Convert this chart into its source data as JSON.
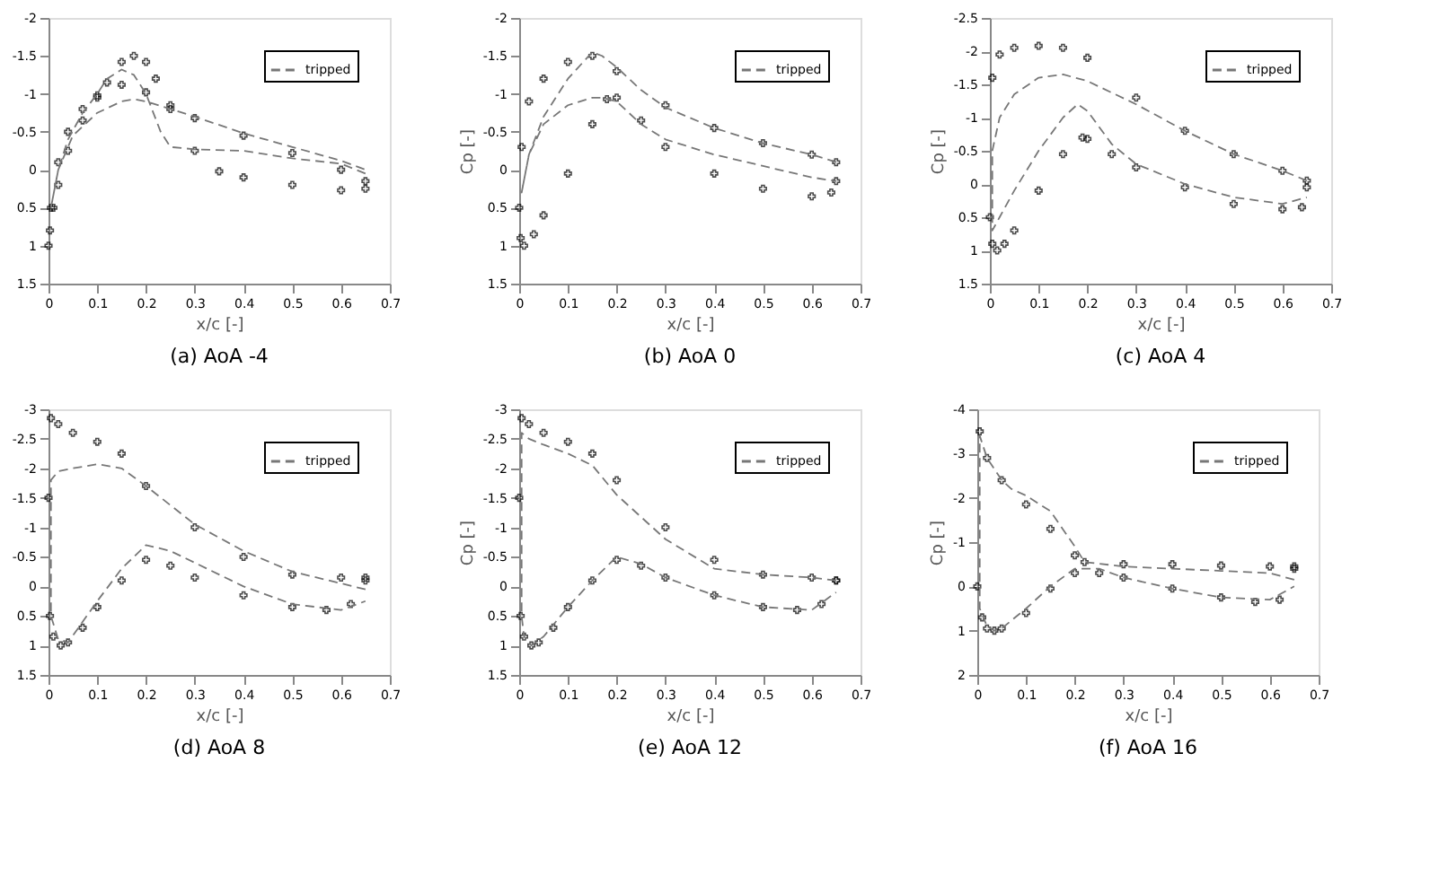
{
  "chart_data": [
    {
      "type": "line",
      "title": "(a) AoA -4",
      "xlabel": "x/c [-]",
      "xlim": [
        0,
        0.7
      ],
      "xticks": [
        0,
        0.1,
        0.2,
        0.3,
        0.4,
        0.5,
        0.6,
        0.7
      ],
      "ylim": [
        1.5,
        -2
      ],
      "yticks": [
        -2,
        -1.5,
        -1,
        -0.5,
        0,
        0.5,
        1,
        1.5
      ],
      "legend": "top right",
      "grid": false,
      "series": [
        {
          "type": "scatter",
          "marker": "cross",
          "color": "#000000",
          "x": [
            0.65,
            0.6,
            0.5,
            0.4,
            0.35,
            0.3,
            0.25,
            0.22,
            0.2,
            0.175,
            0.15,
            0.12,
            0.1,
            0.07,
            0.04,
            0.02,
            0.01,
            0.003,
            0,
            0.005,
            0.02,
            0.04,
            0.07,
            0.1,
            0.15,
            0.2,
            0.25,
            0.3,
            0.4,
            0.5,
            0.6,
            0.65
          ],
          "values": [
            0.25,
            0.27,
            0.2,
            0.1,
            0.02,
            -0.25,
            -0.8,
            -1.2,
            -1.42,
            -1.5,
            -1.42,
            -1.15,
            -0.95,
            -0.65,
            -0.25,
            0.2,
            0.5,
            0.8,
            1.0,
            0.5,
            -0.1,
            -0.5,
            -0.8,
            -0.98,
            -1.12,
            -1.02,
            -0.85,
            -0.68,
            -0.45,
            -0.22,
            0.0,
            0.15
          ]
        },
        {
          "type": "line",
          "name": "tripped",
          "line_style": "dashed",
          "color": "#777777",
          "x": [
            0.65,
            0.6,
            0.5,
            0.4,
            0.3,
            0.25,
            0.23,
            0.2,
            0.175,
            0.15,
            0.12,
            0.1,
            0.07,
            0.04,
            0.02,
            0.005,
            0.02,
            0.05,
            0.1,
            0.15,
            0.175,
            0.2,
            0.3,
            0.4,
            0.5,
            0.6,
            0.65
          ],
          "values": [
            0.05,
            -0.08,
            -0.15,
            -0.25,
            -0.27,
            -0.3,
            -0.5,
            -1.0,
            -1.25,
            -1.32,
            -1.2,
            -1.0,
            -0.75,
            -0.4,
            0.0,
            0.5,
            0.0,
            -0.45,
            -0.75,
            -0.9,
            -0.93,
            -0.9,
            -0.7,
            -0.48,
            -0.3,
            -0.12,
            0.0
          ]
        }
      ]
    },
    {
      "type": "line",
      "title": "(b) AoA 0",
      "xlabel": "x/c [-]",
      "ylabel": "Cp [-]",
      "xlim": [
        0,
        0.7
      ],
      "xticks": [
        0,
        0.1,
        0.2,
        0.3,
        0.4,
        0.5,
        0.6,
        0.7
      ],
      "ylim": [
        1.5,
        -2
      ],
      "yticks": [
        -2,
        -1.5,
        -1,
        -0.5,
        0,
        0.5,
        1,
        1.5
      ],
      "legend": "top right",
      "grid": false,
      "series": [
        {
          "type": "scatter",
          "marker": "cross",
          "color": "#000000",
          "x": [
            0.65,
            0.6,
            0.5,
            0.4,
            0.3,
            0.2,
            0.15,
            0.1,
            0.05,
            0.02,
            0.005,
            0,
            0.003,
            0.01,
            0.03,
            0.05,
            0.1,
            0.15,
            0.18,
            0.2,
            0.25,
            0.3,
            0.4,
            0.5,
            0.6,
            0.64,
            0.65
          ],
          "values": [
            -0.1,
            -0.2,
            -0.35,
            -0.55,
            -0.85,
            -1.3,
            -1.5,
            -1.42,
            -1.2,
            -0.9,
            -0.3,
            0.5,
            0.9,
            1.0,
            0.85,
            0.6,
            0.05,
            -0.6,
            -0.93,
            -0.95,
            -0.65,
            -0.3,
            0.05,
            0.25,
            0.35,
            0.3,
            0.15
          ]
        },
        {
          "type": "line",
          "name": "tripped",
          "line_style": "dashed",
          "color": "#777777",
          "x": [
            0.65,
            0.6,
            0.5,
            0.4,
            0.3,
            0.25,
            0.2,
            0.17,
            0.15,
            0.1,
            0.05,
            0.02,
            0.005,
            0.02,
            0.05,
            0.1,
            0.15,
            0.17,
            0.2,
            0.25,
            0.3,
            0.4,
            0.5,
            0.6,
            0.65
          ],
          "values": [
            -0.1,
            -0.2,
            -0.35,
            -0.55,
            -0.82,
            -1.05,
            -1.35,
            -1.5,
            -1.55,
            -1.2,
            -0.7,
            -0.2,
            0.3,
            -0.2,
            -0.6,
            -0.85,
            -0.95,
            -0.95,
            -0.9,
            -0.6,
            -0.4,
            -0.2,
            -0.05,
            0.1,
            0.15
          ]
        }
      ]
    },
    {
      "type": "line",
      "title": "(c) AoA 4",
      "xlabel": "x/c [-]",
      "ylabel": "Cp [-]",
      "xlim": [
        0,
        0.7
      ],
      "xticks": [
        0,
        0.1,
        0.2,
        0.3,
        0.4,
        0.5,
        0.6,
        0.7
      ],
      "ylim": [
        1.5,
        -2.5
      ],
      "yticks": [
        -2.5,
        -2,
        -1.5,
        -1,
        -0.5,
        0,
        0.5,
        1,
        1.5
      ],
      "legend": "top right",
      "grid": false,
      "series": [
        {
          "type": "scatter",
          "marker": "cross",
          "color": "#000000",
          "x": [
            0.65,
            0.6,
            0.5,
            0.4,
            0.3,
            0.2,
            0.15,
            0.1,
            0.05,
            0.02,
            0.005,
            0,
            0.005,
            0.015,
            0.03,
            0.05,
            0.1,
            0.15,
            0.19,
            0.2,
            0.25,
            0.3,
            0.4,
            0.5,
            0.6,
            0.64,
            0.65
          ],
          "values": [
            -0.05,
            -0.2,
            -0.45,
            -0.8,
            -1.3,
            -1.9,
            -2.05,
            -2.08,
            -2.05,
            -1.95,
            -1.6,
            0.5,
            0.9,
            1.0,
            0.9,
            0.7,
            0.1,
            -0.45,
            -0.7,
            -0.68,
            -0.45,
            -0.25,
            0.05,
            0.3,
            0.38,
            0.35,
            0.05
          ]
        },
        {
          "type": "line",
          "name": "tripped",
          "line_style": "dashed",
          "color": "#777777",
          "x": [
            0.65,
            0.6,
            0.5,
            0.4,
            0.3,
            0.2,
            0.15,
            0.1,
            0.05,
            0.02,
            0.005,
            0.005,
            0.02,
            0.05,
            0.1,
            0.15,
            0.18,
            0.2,
            0.25,
            0.3,
            0.4,
            0.5,
            0.6,
            0.65
          ],
          "values": [
            -0.05,
            -0.2,
            -0.45,
            -0.8,
            -1.2,
            -1.55,
            -1.65,
            -1.6,
            -1.35,
            -1.0,
            -0.5,
            0.7,
            0.5,
            0.1,
            -0.5,
            -1.0,
            -1.2,
            -1.1,
            -0.6,
            -0.3,
            0.0,
            0.2,
            0.3,
            0.2
          ]
        }
      ]
    },
    {
      "type": "line",
      "title": "(d) AoA 8",
      "xlabel": "x/c [-]",
      "xlim": [
        0,
        0.7
      ],
      "xticks": [
        0,
        0.1,
        0.2,
        0.3,
        0.4,
        0.5,
        0.6,
        0.7
      ],
      "ylim": [
        1.5,
        -3
      ],
      "yticks": [
        -3,
        -2.5,
        -2,
        -1.5,
        -1,
        -0.5,
        0,
        0.5,
        1,
        1.5
      ],
      "legend": "top right",
      "grid": false,
      "series": [
        {
          "type": "scatter",
          "marker": "cross",
          "color": "#000000",
          "x": [
            0.65,
            0.6,
            0.5,
            0.4,
            0.3,
            0.2,
            0.15,
            0.1,
            0.05,
            0.02,
            0.005,
            0,
            0.003,
            0.01,
            0.025,
            0.04,
            0.07,
            0.1,
            0.15,
            0.2,
            0.25,
            0.3,
            0.4,
            0.5,
            0.57,
            0.62,
            0.65
          ],
          "values": [
            -0.15,
            -0.15,
            -0.2,
            -0.5,
            -1.0,
            -1.7,
            -2.25,
            -2.45,
            -2.6,
            -2.75,
            -2.85,
            -1.5,
            0.5,
            0.85,
            1.0,
            0.95,
            0.7,
            0.35,
            -0.1,
            -0.45,
            -0.35,
            -0.15,
            0.15,
            0.35,
            0.4,
            0.3,
            -0.1
          ]
        },
        {
          "type": "line",
          "name": "tripped",
          "line_style": "dashed",
          "color": "#777777",
          "x": [
            0.65,
            0.6,
            0.5,
            0.4,
            0.3,
            0.2,
            0.15,
            0.1,
            0.05,
            0.02,
            0.005,
            0.005,
            0.02,
            0.04,
            0.07,
            0.1,
            0.15,
            0.2,
            0.25,
            0.3,
            0.4,
            0.5,
            0.6,
            0.65
          ],
          "values": [
            0.05,
            -0.05,
            -0.25,
            -0.6,
            -1.05,
            -1.7,
            -2.0,
            -2.07,
            -2.0,
            -1.95,
            -1.8,
            0.5,
            0.9,
            0.95,
            0.6,
            0.25,
            -0.3,
            -0.7,
            -0.6,
            -0.4,
            0.0,
            0.3,
            0.4,
            0.25
          ]
        }
      ]
    },
    {
      "type": "line",
      "title": "(e) AoA 12",
      "xlabel": "x/c [-]",
      "ylabel": "Cp [-]",
      "xlim": [
        0,
        0.7
      ],
      "xticks": [
        0,
        0.1,
        0.2,
        0.3,
        0.4,
        0.5,
        0.6,
        0.7
      ],
      "ylim": [
        1.5,
        -3
      ],
      "yticks": [
        -3,
        -2.5,
        -2,
        -1.5,
        -1,
        -0.5,
        0,
        0.5,
        1,
        1.5
      ],
      "legend": "top right",
      "grid": false,
      "series": [
        {
          "type": "scatter",
          "marker": "cross",
          "color": "#000000",
          "x": [
            0.65,
            0.6,
            0.5,
            0.4,
            0.3,
            0.2,
            0.15,
            0.1,
            0.05,
            0.02,
            0.005,
            0,
            0.003,
            0.01,
            0.025,
            0.04,
            0.07,
            0.1,
            0.15,
            0.2,
            0.25,
            0.3,
            0.4,
            0.5,
            0.57,
            0.62,
            0.65
          ],
          "values": [
            -0.1,
            -0.15,
            -0.2,
            -0.45,
            -1.0,
            -1.8,
            -2.25,
            -2.45,
            -2.6,
            -2.75,
            -2.85,
            -1.5,
            0.5,
            0.85,
            1.0,
            0.95,
            0.7,
            0.35,
            -0.1,
            -0.45,
            -0.35,
            -0.15,
            0.15,
            0.35,
            0.4,
            0.3,
            -0.1
          ]
        },
        {
          "type": "line",
          "name": "tripped",
          "line_style": "dashed",
          "color": "#777777",
          "x": [
            0.65,
            0.6,
            0.5,
            0.4,
            0.3,
            0.2,
            0.15,
            0.1,
            0.05,
            0.02,
            0.005,
            0.005,
            0.01,
            0.025,
            0.05,
            0.1,
            0.15,
            0.2,
            0.25,
            0.3,
            0.4,
            0.5,
            0.6,
            0.65
          ],
          "values": [
            -0.1,
            -0.15,
            -0.2,
            -0.3,
            -0.8,
            -1.55,
            -2.05,
            -2.25,
            -2.4,
            -2.5,
            -2.6,
            0.5,
            0.85,
            1.0,
            0.85,
            0.35,
            -0.1,
            -0.5,
            -0.38,
            -0.15,
            0.15,
            0.35,
            0.4,
            0.1
          ]
        }
      ]
    },
    {
      "type": "line",
      "title": "(f) AoA 16",
      "xlabel": "x/c [-]",
      "ylabel": "Cp [-]",
      "xlim": [
        0,
        0.7
      ],
      "xticks": [
        0,
        0.1,
        0.2,
        0.3,
        0.4,
        0.5,
        0.6,
        0.7
      ],
      "ylim": [
        2,
        -4
      ],
      "yticks": [
        -4,
        -3,
        -2,
        -1,
        0,
        1,
        2
      ],
      "legend": "top right",
      "grid": false,
      "series": [
        {
          "type": "scatter",
          "marker": "cross",
          "color": "#000000",
          "x": [
            0.65,
            0.6,
            0.5,
            0.4,
            0.3,
            0.22,
            0.2,
            0.15,
            0.1,
            0.05,
            0.02,
            0.005,
            0,
            0.01,
            0.02,
            0.035,
            0.05,
            0.1,
            0.15,
            0.2,
            0.25,
            0.3,
            0.4,
            0.5,
            0.57,
            0.62,
            0.65
          ],
          "values": [
            -0.45,
            -0.45,
            -0.47,
            -0.5,
            -0.5,
            -0.55,
            -0.7,
            -1.3,
            -1.85,
            -2.4,
            -2.9,
            -3.5,
            0.0,
            0.7,
            0.95,
            1.0,
            0.95,
            0.6,
            0.05,
            -0.3,
            -0.3,
            -0.2,
            0.05,
            0.25,
            0.35,
            0.3,
            -0.4
          ]
        },
        {
          "type": "line",
          "name": "tripped",
          "line_style": "dashed",
          "color": "#777777",
          "x": [
            0.65,
            0.6,
            0.5,
            0.4,
            0.3,
            0.22,
            0.2,
            0.15,
            0.1,
            0.07,
            0.05,
            0.02,
            0.005,
            0.005,
            0.02,
            0.035,
            0.05,
            0.1,
            0.15,
            0.2,
            0.25,
            0.3,
            0.4,
            0.5,
            0.6,
            0.65
          ],
          "values": [
            -0.15,
            -0.3,
            -0.35,
            -0.4,
            -0.45,
            -0.55,
            -0.9,
            -1.7,
            -2.05,
            -2.2,
            -2.4,
            -2.9,
            -3.4,
            0.5,
            0.9,
            1.0,
            0.95,
            0.5,
            0.0,
            -0.4,
            -0.4,
            -0.2,
            0.05,
            0.25,
            0.3,
            0.0
          ]
        }
      ]
    }
  ]
}
